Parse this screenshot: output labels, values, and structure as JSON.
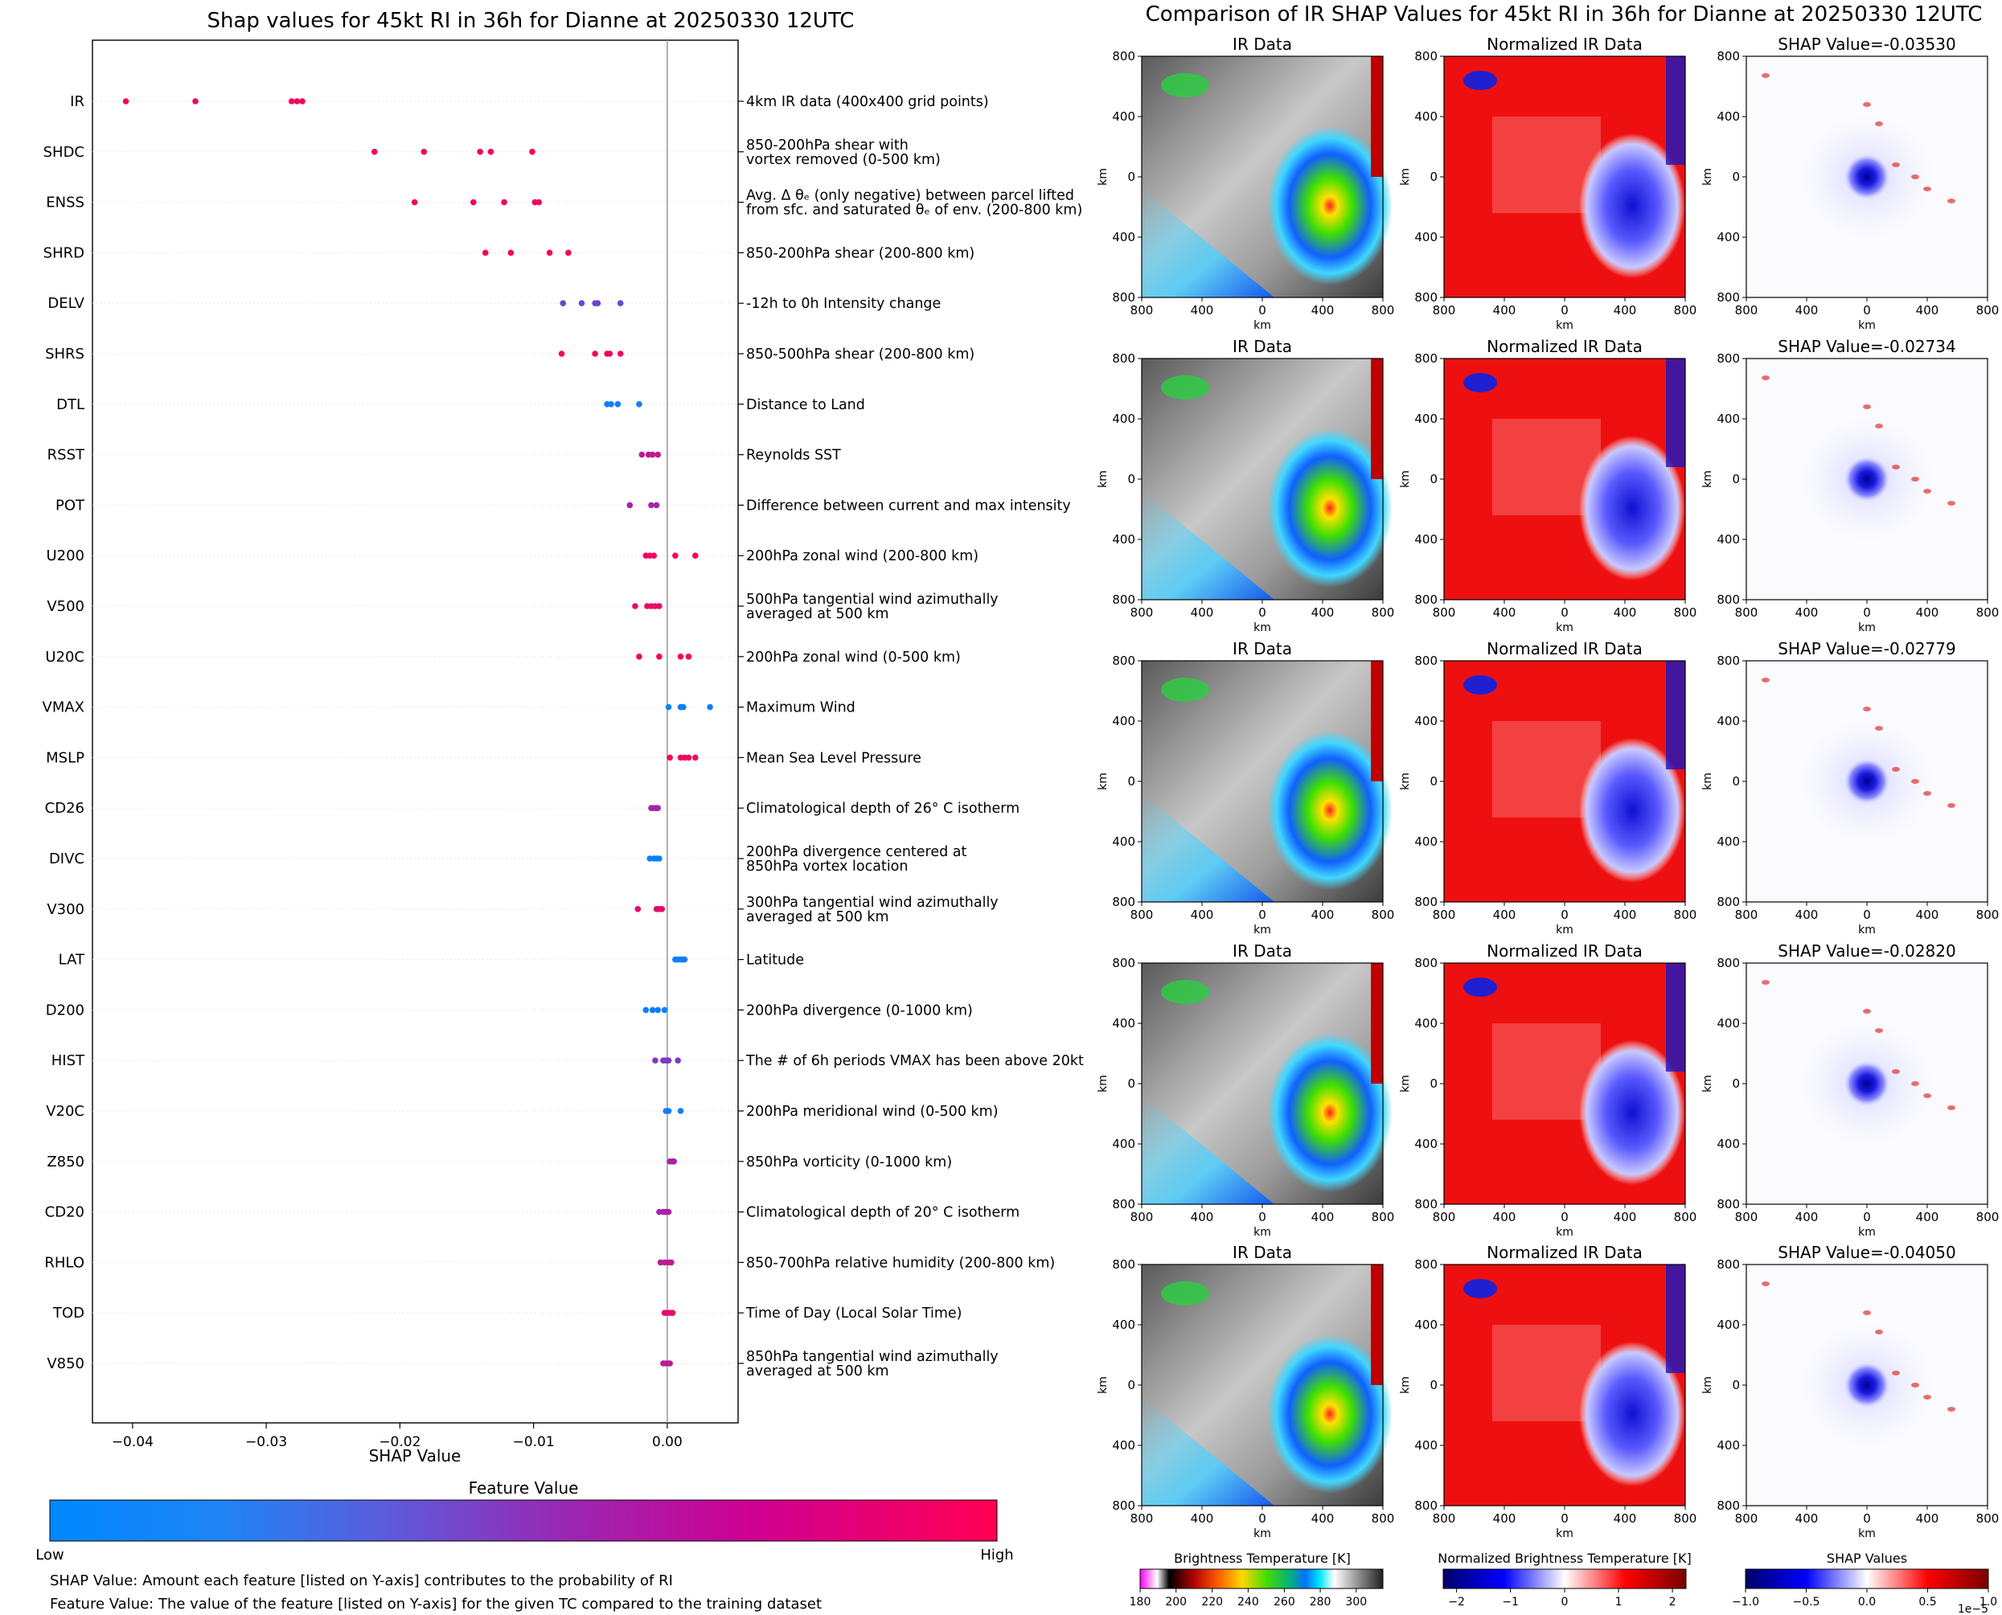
{
  "colors": {
    "low": "#0088ff",
    "mid": "#8a30c0",
    "high": "#ff0052",
    "axis": "#000000",
    "zero_line": "#999999",
    "grid": "#e6e6e6"
  },
  "chart_data": [
    {
      "type": "scatter",
      "title": "Shap values for 45kt RI in 36h for Dianne at 20250330 12UTC",
      "xlabel": "SHAP Value",
      "ylabel": "",
      "xlim": [
        -0.043,
        0.0053
      ],
      "xticks": [
        {
          "value": -0.04,
          "label": "−0.04"
        },
        {
          "value": -0.03,
          "label": "−0.03"
        },
        {
          "value": -0.02,
          "label": "−0.02"
        },
        {
          "value": -0.01,
          "label": "−0.01"
        },
        {
          "value": 0.0,
          "label": "0.00"
        }
      ],
      "colorbar": {
        "title": "Feature Value",
        "low_label": "Low",
        "high_label": "High"
      },
      "notes": [
        "SHAP Value: Amount each feature [listed on Y-axis] contributes to the probability of RI",
        "Feature Value: The value of the feature [listed on Y-axis] for the given TC compared to the training dataset"
      ],
      "features": [
        {
          "name": "IR",
          "desc": [
            "4km IR data (400x400 grid points)"
          ],
          "fv": 0.95,
          "shap": [
            -0.0405,
            -0.0353,
            -0.0281,
            -0.0277,
            -0.0273
          ]
        },
        {
          "name": "SHDC",
          "desc": [
            "850-200hPa shear with",
            "vortex removed (0-500 km)"
          ],
          "fv": 0.95,
          "shap": [
            -0.0219,
            -0.0182,
            -0.014,
            -0.0132,
            -0.0101
          ]
        },
        {
          "name": "ENSS",
          "desc": [
            "Avg. Δ θₑ (only negative) between parcel lifted",
            "from sfc. and saturated θₑ of env. (200-800 km)"
          ],
          "fv": 0.95,
          "shap": [
            -0.0189,
            -0.0145,
            -0.0122,
            -0.0099,
            -0.0096
          ]
        },
        {
          "name": "SHRD",
          "desc": [
            "850-200hPa shear (200-800 km)"
          ],
          "fv": 0.95,
          "shap": [
            -0.0136,
            -0.0117,
            -0.0088,
            -0.0074
          ]
        },
        {
          "name": "DELV",
          "desc": [
            "-12h to 0h Intensity change"
          ],
          "fv": 0.38,
          "shap": [
            -0.0078,
            -0.0064,
            -0.0054,
            -0.0052,
            -0.0035
          ]
        },
        {
          "name": "SHRS",
          "desc": [
            "850-500hPa shear (200-800 km)"
          ],
          "fv": 0.95,
          "shap": [
            -0.0079,
            -0.0054,
            -0.0045,
            -0.0043,
            -0.0035
          ]
        },
        {
          "name": "DTL",
          "desc": [
            "Distance to Land"
          ],
          "fv": 0.05,
          "shap": [
            -0.0045,
            -0.0042,
            -0.0037,
            -0.0021
          ]
        },
        {
          "name": "RSST",
          "desc": [
            "Reynolds SST"
          ],
          "fv": 0.72,
          "shap": [
            -0.0019,
            -0.0014,
            -0.0011,
            -0.0007
          ]
        },
        {
          "name": "POT",
          "desc": [
            "Difference between current and max intensity"
          ],
          "fv": 0.6,
          "shap": [
            -0.0028,
            -0.0012,
            -0.0008
          ]
        },
        {
          "name": "U200",
          "desc": [
            "200hPa zonal wind (200-800 km)"
          ],
          "fv": 0.95,
          "shap": [
            -0.0016,
            -0.0013,
            -0.001,
            0.0006,
            0.0021
          ]
        },
        {
          "name": "V500",
          "desc": [
            "500hPa tangential wind azimuthally",
            "averaged at 500 km"
          ],
          "fv": 0.9,
          "shap": [
            -0.0024,
            -0.0015,
            -0.0012,
            -0.0009,
            -0.0006
          ]
        },
        {
          "name": "U20C",
          "desc": [
            "200hPa zonal wind (0-500 km)"
          ],
          "fv": 0.95,
          "shap": [
            -0.0021,
            -0.0006,
            0.001,
            0.0016
          ]
        },
        {
          "name": "VMAX",
          "desc": [
            "Maximum Wind"
          ],
          "fv": 0.05,
          "shap": [
            0.0001,
            0.001,
            0.0012,
            0.0032
          ]
        },
        {
          "name": "MSLP",
          "desc": [
            "Mean Sea Level Pressure"
          ],
          "fv": 0.95,
          "shap": [
            0.0002,
            0.001,
            0.0013,
            0.0016,
            0.0021
          ]
        },
        {
          "name": "CD26",
          "desc": [
            "Climatological depth of 26° C isotherm"
          ],
          "fv": 0.6,
          "shap": [
            -0.0012,
            -0.001,
            -0.0008,
            -0.0007
          ]
        },
        {
          "name": "DIVC",
          "desc": [
            "200hPa divergence centered at",
            "850hPa vortex location"
          ],
          "fv": 0.05,
          "shap": [
            -0.0013,
            -0.001,
            -0.0008,
            -0.0006
          ]
        },
        {
          "name": "V300",
          "desc": [
            "300hPa tangential wind azimuthally",
            "averaged at 500 km"
          ],
          "fv": 0.9,
          "shap": [
            -0.0022,
            -0.0008,
            -0.0006,
            -0.0004
          ]
        },
        {
          "name": "LAT",
          "desc": [
            "Latitude"
          ],
          "fv": 0.05,
          "shap": [
            0.0006,
            0.0008,
            0.001,
            0.0012,
            0.0013
          ]
        },
        {
          "name": "D200",
          "desc": [
            "200hPa divergence (0-1000 km)"
          ],
          "fv": 0.05,
          "shap": [
            -0.0016,
            -0.0011,
            -0.0007,
            -0.0002
          ]
        },
        {
          "name": "HIST",
          "desc": [
            "The # of 6h periods VMAX has been above 20kt"
          ],
          "fv": 0.45,
          "shap": [
            -0.0009,
            -0.0003,
            -0.0001,
            0.0001,
            0.0008
          ]
        },
        {
          "name": "V20C",
          "desc": [
            "200hPa meridional wind (0-500 km)"
          ],
          "fv": 0.05,
          "shap": [
            -0.0001,
            0.0001,
            0.001
          ]
        },
        {
          "name": "Z850",
          "desc": [
            "850hPa vorticity (0-1000 km)"
          ],
          "fv": 0.62,
          "shap": [
            0.0002,
            0.0004,
            0.0005
          ]
        },
        {
          "name": "CD20",
          "desc": [
            "Climatological depth of 20° C isotherm"
          ],
          "fv": 0.62,
          "shap": [
            -0.0006,
            -0.0003,
            -0.0001,
            0.0001
          ]
        },
        {
          "name": "RHLO",
          "desc": [
            "850-700hPa relative humidity (200-800 km)"
          ],
          "fv": 0.72,
          "shap": [
            -0.0005,
            -0.0002,
            0.0001,
            0.0003
          ]
        },
        {
          "name": "TOD",
          "desc": [
            "Time of Day (Local Solar Time)"
          ],
          "fv": 0.88,
          "shap": [
            -0.0002,
            0.0,
            0.0002,
            0.0004
          ]
        },
        {
          "name": "V850",
          "desc": [
            "850hPa tangential wind azimuthally",
            "averaged at 500 km"
          ],
          "fv": 0.7,
          "shap": [
            -0.0003,
            -0.0001,
            0.0001,
            0.0002
          ]
        }
      ]
    },
    {
      "type": "heatmap",
      "title": "Comparison of IR SHAP Values for 45kt RI in 36h for Dianne at 20250330 12UTC",
      "panel_titles": [
        "IR Data",
        "Normalized IR Data"
      ],
      "row_shap_titles": [
        "SHAP Value=-0.03530",
        "SHAP Value=-0.02734",
        "SHAP Value=-0.02779",
        "SHAP Value=-0.02820",
        "SHAP Value=-0.04050"
      ],
      "axis_unit": "km",
      "axis_ticks": [
        "800",
        "400",
        "0",
        "400",
        "800"
      ],
      "colorbars": [
        {
          "label": "Brightness Temperature [K]",
          "ticks": [
            "180",
            "200",
            "220",
            "240",
            "260",
            "280",
            "300"
          ]
        },
        {
          "label": "Normalized Brightness Temperature [K]",
          "ticks": [
            "−2",
            "−1",
            "0",
            "1",
            "2"
          ]
        },
        {
          "label": "SHAP Values",
          "ticks": [
            "−1.0",
            "−0.5",
            "0.0",
            "0.5",
            "1.0"
          ],
          "scale_label": "1e−5"
        }
      ]
    }
  ]
}
